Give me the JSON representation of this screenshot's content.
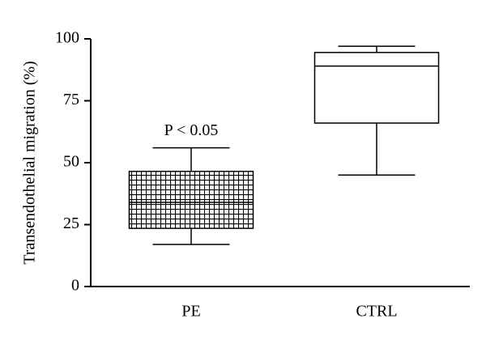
{
  "chart_data": {
    "type": "box",
    "y_label": "Transendothelial migration (%)",
    "annotation": "P < 0.05",
    "categories": [
      "PE",
      "CTRL"
    ],
    "whisker_low": [
      17,
      45
    ],
    "q1": [
      23.5,
      66
    ],
    "median": [
      34,
      89
    ],
    "q3": [
      46.5,
      94.5
    ],
    "whisker_high": [
      56,
      97
    ],
    "fills": [
      "hatched",
      "plain"
    ],
    "color": "#000000",
    "ylim": [
      0,
      100
    ],
    "yticks": [
      0,
      25,
      50,
      75,
      100
    ]
  }
}
